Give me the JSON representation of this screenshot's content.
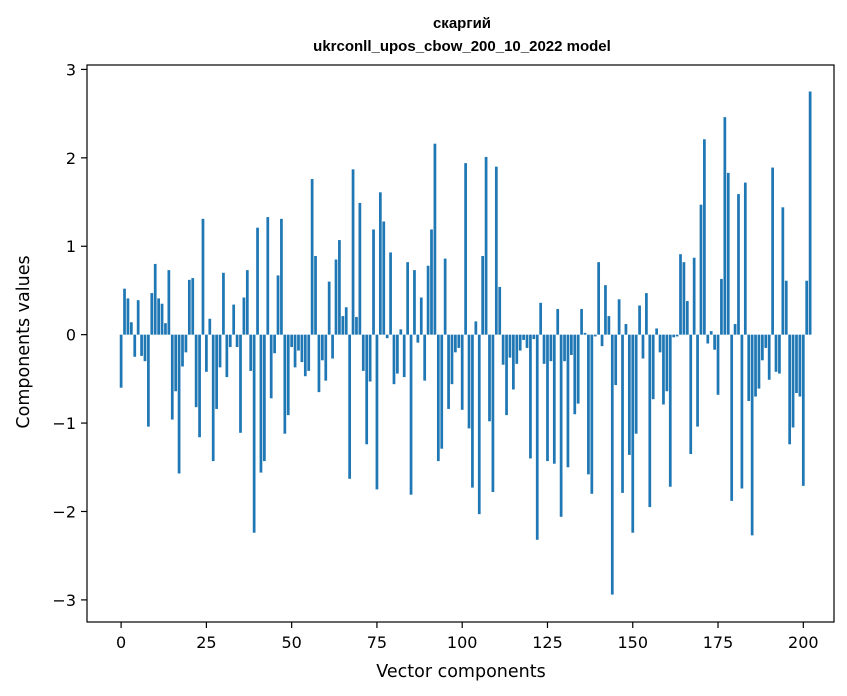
{
  "chart_data": {
    "type": "bar",
    "title": "скаргий",
    "subtitle": "ukrconll_upos_cbow_200_10_2022 model",
    "xlabel": "Vector components",
    "ylabel": "Components values",
    "xlim": [
      -10,
      209
    ],
    "ylim": [
      -3.25,
      3.05
    ],
    "xticks": [
      0,
      25,
      50,
      75,
      100,
      125,
      150,
      175,
      200
    ],
    "yticks": [
      -3,
      -2,
      -1,
      0,
      1,
      2,
      3
    ],
    "xtick_labels": [
      "0",
      "25",
      "50",
      "75",
      "100",
      "125",
      "150",
      "175",
      "200"
    ],
    "ytick_labels": [
      "−3",
      "−2",
      "−1",
      "0",
      "1",
      "2",
      "3"
    ],
    "bar_color": "#1f77b4",
    "values": [
      -0.6,
      0.52,
      0.41,
      0.14,
      -0.25,
      0.39,
      -0.24,
      -0.3,
      -1.04,
      0.47,
      0.8,
      0.41,
      0.35,
      0.13,
      0.73,
      -0.96,
      -0.64,
      -1.57,
      -0.36,
      -0.2,
      0.62,
      0.64,
      -0.82,
      -1.16,
      1.31,
      -0.42,
      0.18,
      -1.43,
      -0.84,
      -0.37,
      0.7,
      -0.48,
      -0.14,
      0.34,
      -0.14,
      -1.11,
      0.42,
      0.73,
      -0.41,
      -2.24,
      1.21,
      -1.56,
      -1.43,
      1.33,
      -0.72,
      -0.21,
      0.67,
      1.31,
      -1.12,
      -0.91,
      -0.14,
      -0.37,
      -0.18,
      -0.31,
      -0.47,
      -0.41,
      1.76,
      0.89,
      -0.65,
      -0.29,
      -0.52,
      0.6,
      -0.27,
      0.85,
      1.07,
      0.21,
      0.31,
      -1.63,
      1.87,
      0.2,
      1.49,
      -0.41,
      -1.24,
      -0.53,
      1.19,
      -1.75,
      1.61,
      1.28,
      -0.04,
      0.93,
      -0.56,
      -0.44,
      0.06,
      -0.48,
      0.82,
      -1.81,
      0.73,
      -0.09,
      0.42,
      -0.52,
      0.78,
      1.19,
      2.16,
      -1.43,
      -1.29,
      0.86,
      -0.84,
      -0.56,
      -0.2,
      -0.15,
      -0.85,
      1.94,
      -1.06,
      -1.73,
      0.15,
      -2.03,
      0.89,
      2.01,
      -0.98,
      -1.78,
      1.9,
      0.54,
      -0.34,
      -0.91,
      -0.26,
      -0.62,
      -0.33,
      -0.18,
      -0.06,
      -0.15,
      -1.4,
      -0.05,
      -2.32,
      0.36,
      -0.33,
      -1.43,
      -0.3,
      -1.46,
      0.29,
      -2.06,
      -0.3,
      -1.5,
      -0.23,
      -0.9,
      -0.78,
      0.29,
      0.02,
      -1.58,
      -1.8,
      -0.02,
      0.82,
      -0.13,
      0.56,
      0.21,
      -2.94,
      -0.57,
      0.4,
      -1.79,
      0.12,
      -1.36,
      -2.24,
      -1.12,
      0.33,
      -0.27,
      0.47,
      -1.95,
      -0.73,
      0.07,
      -0.2,
      -0.79,
      -0.64,
      -1.72,
      -0.03,
      -0.02,
      0.91,
      0.82,
      0.38,
      -1.35,
      0.87,
      -1.04,
      1.47,
      2.21,
      -0.1,
      0.04,
      -0.17,
      -0.68,
      0.63,
      2.46,
      1.83,
      -1.88,
      0.12,
      1.59,
      -1.74,
      1.72,
      -0.75,
      -2.27,
      -0.7,
      -0.61,
      -0.29,
      -0.15,
      -0.51,
      1.89,
      -0.42,
      -0.44,
      1.44,
      0.61,
      -1.24,
      -1.05,
      -0.66,
      -0.7,
      -1.71,
      0.61,
      2.75
    ]
  }
}
